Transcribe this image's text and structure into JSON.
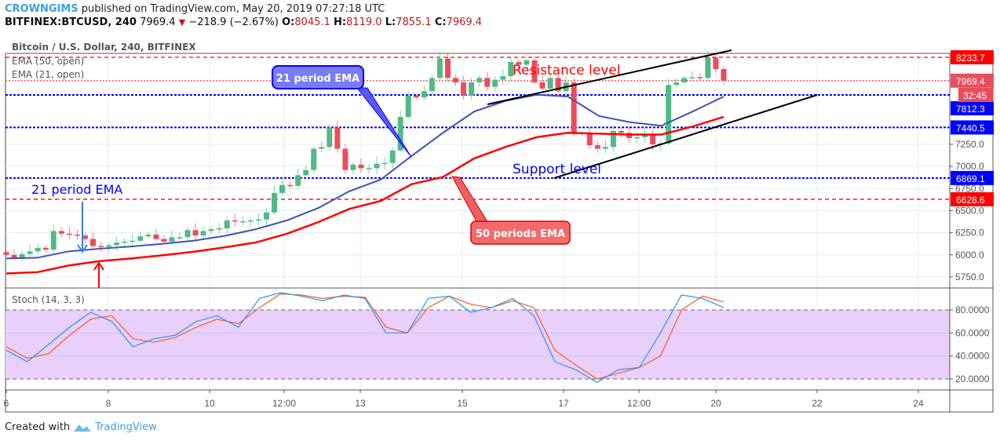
{
  "header": {
    "author": "CROWNGIMS",
    "published": "published on TradingView.com, May 20, 2019 07:27:18 UTC",
    "symbol": "BITFINEX:BTCUSD, 240",
    "last": "7969.4",
    "change": "−218.9 (−2.67%)",
    "o_label": "O:",
    "o": "8045.1",
    "h_label": "H:",
    "h": "8119.0",
    "l_label": "L:",
    "l": "7855.1",
    "c_label": "C:",
    "c": "7969.4",
    "down_icon": "triangle-down-icon"
  },
  "legend": {
    "title": "Bitcoin / U.S. Dollar, 240, BITFINEX",
    "ema50": "EMA (50, open)",
    "ema21": "EMA (21, open)",
    "stoch": "Stoch (14, 3, 3)"
  },
  "footer": {
    "created_with": "Created with",
    "brand": "TradingView"
  },
  "colors": {
    "up": "#53b987",
    "down": "#eb4d5c",
    "ema21": "#3f51b5",
    "ema50": "#ff0000",
    "stoch_k": "#2196f3",
    "stoch_d": "#ff5722",
    "stoch_band": "#e9d0fc"
  },
  "chart_data": [
    {
      "type": "candlestick",
      "title": "Bitcoin / U.S. Dollar, 240, BITFINEX",
      "ylim": [
        5650,
        8480
      ],
      "y_ticks": [
        "5750.0",
        "6000.0",
        "6250.0",
        "6500.0",
        "6750.0",
        "7000.0",
        "7250.0"
      ],
      "x_ticks": [
        "6",
        "8",
        "10",
        "12:00",
        "13",
        "15",
        "17",
        "12:00",
        "20",
        "22",
        "24"
      ],
      "closes": [
        6000,
        5960,
        6010,
        6040,
        6080,
        6060,
        6270,
        6240,
        6230,
        6220,
        6180,
        6100,
        6090,
        6110,
        6140,
        6150,
        6160,
        6210,
        6230,
        6180,
        6150,
        6200,
        6200,
        6280,
        6220,
        6270,
        6290,
        6300,
        6390,
        6380,
        6380,
        6390,
        6400,
        6480,
        6700,
        6790,
        6780,
        6900,
        6960,
        7200,
        7220,
        7440,
        7200,
        6960,
        7020,
        6980,
        6980,
        7030,
        7040,
        7180,
        7560,
        7800,
        7780,
        7850,
        8000,
        8220,
        8000,
        7950,
        7800,
        7950,
        8000,
        7900,
        7980,
        8020,
        8180,
        8150,
        8200,
        7950,
        7880,
        8000,
        7850,
        7950,
        7380,
        7380,
        7240,
        7200,
        7220,
        7400,
        7380,
        7320,
        7330,
        7360,
        7250,
        7260,
        7920,
        7950,
        8000,
        8010,
        8000,
        8230,
        8100,
        7970
      ],
      "ema21": [
        5960,
        5968,
        6040,
        6070,
        6095,
        6125,
        6160,
        6215,
        6290,
        6390,
        6530,
        6720,
        6850,
        7120,
        7380,
        7620,
        7740,
        7810,
        7790,
        7570,
        7500,
        7460,
        7620,
        7790
      ],
      "ema50": [
        5790,
        5805,
        5880,
        5930,
        5960,
        5995,
        6035,
        6085,
        6140,
        6240,
        6370,
        6520,
        6610,
        6800,
        6880,
        7090,
        7220,
        7330,
        7380,
        7370,
        7360,
        7360,
        7450,
        7560
      ],
      "price_labels": [
        {
          "value": 8233.7,
          "text": "8233.7",
          "color": "#ff0000",
          "line": "red-dashed"
        },
        {
          "value": 7969.4,
          "text": "7969.4",
          "color": "#eb4d5c",
          "line": "red-dotted"
        },
        {
          "value": 7812.3,
          "text": "7812.3",
          "color": "#0000ff",
          "line": "blue-dotted"
        },
        {
          "value": 7440.5,
          "text": "7440.5",
          "color": "#0000ff",
          "line": "blue-dotted"
        },
        {
          "value": 6869.1,
          "text": "6869.1",
          "color": "#0000ff",
          "line": "blue-dotted"
        },
        {
          "value": 6628.6,
          "text": "6628.6",
          "color": "#ff0000",
          "line": "red-dashed"
        }
      ],
      "countdown": "32:45",
      "annotations": {
        "resistance": "Resistance level",
        "support": "Support level",
        "ema21_callout": "21 period EMA",
        "ema50_callout": "50 periods EMA",
        "ema21_text": "21 period EMA"
      }
    },
    {
      "type": "line",
      "title": "Stoch (14, 3, 3)",
      "ylim": [
        5,
        100
      ],
      "y_ticks": [
        "80.0000",
        "60.0000",
        "40.0000",
        "20.0000"
      ],
      "band": [
        20,
        80
      ],
      "series": [
        {
          "values": [
            45,
            35,
            50,
            65,
            78,
            70,
            48,
            55,
            58,
            70,
            75,
            65,
            90,
            95,
            92,
            88,
            93,
            90,
            60,
            60,
            90,
            92,
            78,
            82,
            90,
            75,
            35,
            28,
            17,
            28,
            30,
            60,
            93,
            90,
            82
          ]
        },
        {
          "values": [
            48,
            38,
            42,
            58,
            72,
            75,
            55,
            52,
            56,
            65,
            72,
            68,
            82,
            94,
            93,
            90,
            92,
            91,
            65,
            60,
            82,
            92,
            85,
            82,
            88,
            82,
            45,
            32,
            20,
            25,
            30,
            40,
            80,
            92,
            87
          ]
        }
      ]
    }
  ]
}
